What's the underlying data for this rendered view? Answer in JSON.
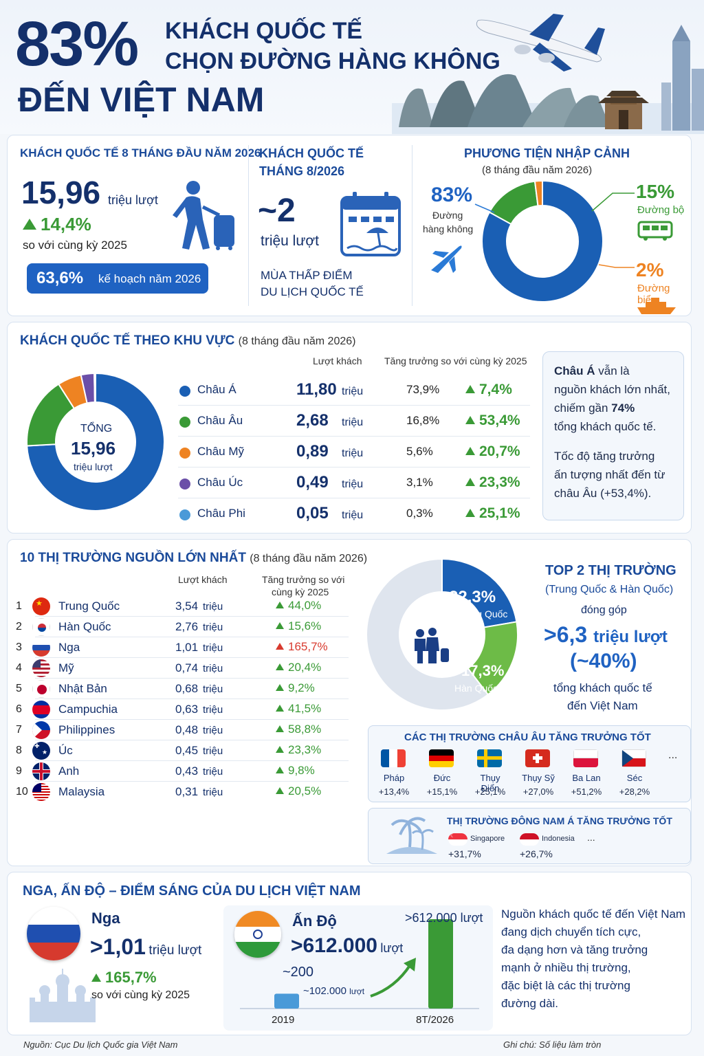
{
  "colors": {
    "navy": "#14306b",
    "blue": "#1a5fb4",
    "green": "#3a9a36",
    "orange": "#ee8322",
    "purple": "#6b4fa8",
    "lightblue": "#4a9ad8"
  },
  "header": {
    "big_percent": "83%",
    "title_line1": "KHÁCH QUỐC TẾ",
    "title_line2": "CHỌN ĐƯỜNG HÀNG KHÔNG",
    "title_line3": "ĐẾN VIỆT NAM"
  },
  "summary": {
    "card1_title": "KHÁCH QUỐC TẾ 8 THÁNG ĐẦU NĂM 2026",
    "total_value": "15,96",
    "total_unit": "triệu lượt",
    "growth": "14,4%",
    "growth_note": "so với cùng kỳ 2025",
    "plan_pct": "63,6%",
    "plan_text": "kế hoạch năm 2026",
    "card2_title_1": "KHÁCH QUỐC TẾ",
    "card2_title_2": "THÁNG 8/2026",
    "month_value": "~2",
    "month_unit": "triệu lượt",
    "month_note_1": "MÙA THẤP ĐIỂM",
    "month_note_2": "DU LỊCH QUỐC TẾ"
  },
  "transport": {
    "title": "PHƯƠNG TIỆN NHẬP CẢNH",
    "subtitle": "(8 tháng đầu năm 2026)",
    "air_pct": "83%",
    "air_label_1": "Đường",
    "air_label_2": "hàng không",
    "road_pct": "15%",
    "road_label": "Đường bộ",
    "sea_pct": "2%",
    "sea_label": "Đường biển"
  },
  "chart_data": [
    {
      "type": "pie",
      "categories": [
        "Đường hàng không",
        "Đường bộ",
        "Đường biển"
      ],
      "values": [
        83,
        15,
        2
      ]
    },
    {
      "type": "pie",
      "categories": [
        "Châu Á",
        "Châu Âu",
        "Châu Mỹ",
        "Châu Úc",
        "Châu Phi"
      ],
      "values": [
        73.9,
        16.8,
        5.6,
        3.1,
        0.3
      ]
    },
    {
      "type": "pie",
      "categories": [
        "Trung Quốc",
        "Hàn Quốc"
      ],
      "values": [
        22.3,
        17.3
      ]
    },
    {
      "type": "bar",
      "categories": [
        "2019",
        "8T/2026"
      ],
      "values": [
        102000,
        612000
      ]
    }
  ],
  "regions": {
    "title": "KHÁCH QUỐC TẾ THEO KHU VỰC",
    "subtitle": "(8 tháng đầu năm 2026)",
    "col_visitors": "Lượt khách",
    "col_growth": "Tăng trưởng so với cùng kỳ 2025",
    "center_label": "TỔNG",
    "center_value": "15,96",
    "center_unit": "triệu lượt",
    "rows": [
      {
        "name": "Châu Á",
        "value": "11,80",
        "unit": "triệu",
        "share": "73,9%",
        "growth": "7,4%"
      },
      {
        "name": "Châu Âu",
        "value": "2,68",
        "unit": "triệu",
        "share": "16,8%",
        "growth": "53,4%"
      },
      {
        "name": "Châu Mỹ",
        "value": "0,89",
        "unit": "triệu",
        "share": "5,6%",
        "growth": "20,7%"
      },
      {
        "name": "Châu Úc",
        "value": "0,49",
        "unit": "triệu",
        "share": "3,1%",
        "growth": "23,3%"
      },
      {
        "name": "Châu Phi",
        "value": "0,05",
        "unit": "triệu",
        "share": "0,3%",
        "growth": "25,1%"
      }
    ],
    "note_bold1": "Châu Á",
    "note_p1a": "vẫn là",
    "note_p1b": "nguồn khách lớn nhất,",
    "note_p1c": "chiếm gần",
    "note_p1c_bold": "74%",
    "note_p1d": "tổng khách quốc tế.",
    "note_p2a": "Tốc độ tăng trưởng",
    "note_p2b": "ấn tượng nhất đến từ",
    "note_p2c": "châu Âu (+53,4%)."
  },
  "markets": {
    "title": "10 THỊ TRƯỜNG NGUỒN LỚN NHẤT",
    "subtitle": "(8 tháng đầu năm 2026)",
    "col_visitors": "Lượt khách",
    "col_growth_1": "Tăng trưởng so với",
    "col_growth_2": "cùng kỳ 2025",
    "rows": [
      {
        "rank": "1",
        "name": "Trung Quốc",
        "value": "3,54",
        "unit": "triệu",
        "growth": "44,0%"
      },
      {
        "rank": "2",
        "name": "Hàn Quốc",
        "value": "2,76",
        "unit": "triệu",
        "growth": "15,6%"
      },
      {
        "rank": "3",
        "name": "Nga",
        "value": "1,01",
        "unit": "triệu",
        "growth": "165,7%"
      },
      {
        "rank": "4",
        "name": "Mỹ",
        "value": "0,74",
        "unit": "triệu",
        "growth": "20,4%"
      },
      {
        "rank": "5",
        "name": "Nhật Bản",
        "value": "0,68",
        "unit": "triệu",
        "growth": "9,2%"
      },
      {
        "rank": "6",
        "name": "Campuchia",
        "value": "0,63",
        "unit": "triệu",
        "growth": "41,5%"
      },
      {
        "rank": "7",
        "name": "Philippines",
        "value": "0,48",
        "unit": "triệu",
        "growth": "58,8%"
      },
      {
        "rank": "8",
        "name": "Úc",
        "value": "0,45",
        "unit": "triệu",
        "growth": "23,3%"
      },
      {
        "rank": "9",
        "name": "Anh",
        "value": "0,43",
        "unit": "triệu",
        "growth": "9,8%"
      },
      {
        "rank": "10",
        "name": "Malaysia",
        "value": "0,31",
        "unit": "triệu",
        "growth": "20,5%"
      }
    ],
    "cn_pct": "22,3%",
    "cn_label": "Trung Quốc",
    "kr_pct": "17,3%",
    "kr_label": "Hàn Quốc",
    "top2_title": "TOP 2 THỊ TRƯỜNG",
    "top2_sub": "(Trung Quốc & Hàn Quốc)",
    "top2_contrib": "đóng góp",
    "top2_value": ">6,3",
    "top2_unit": "triệu lượt",
    "top2_pct": "(~40%)",
    "top2_note_1": "tổng khách quốc tế",
    "top2_note_2": "đến Việt Nam"
  },
  "europe": {
    "title": "CÁC THỊ TRƯỜNG CHÂU ÂU TĂNG TRƯỞNG TỐT",
    "items": [
      {
        "name": "Pháp",
        "growth": "+13,4%"
      },
      {
        "name": "Đức",
        "growth": "+15,1%"
      },
      {
        "name": "Thụy Điển",
        "growth": "+25,1%"
      },
      {
        "name": "Thụy Sỹ",
        "growth": "+27,0%"
      },
      {
        "name": "Ba Lan",
        "growth": "+51,2%"
      },
      {
        "name": "Séc",
        "growth": "+28,2%"
      }
    ],
    "more": "..."
  },
  "sea": {
    "title": "THỊ TRƯỜNG ĐÔNG NAM Á TĂNG TRƯỞNG TỐT",
    "items": [
      {
        "name": "Singapore",
        "growth": "+31,7%"
      },
      {
        "name": "Indonesia",
        "growth": "+26,7%"
      }
    ],
    "more": "..."
  },
  "highlight": {
    "title": "NGA, ẤN ĐỘ – ĐIỂM SÁNG CỦA DU LỊCH VIỆT NAM",
    "russia_name": "Nga",
    "russia_value": ">1,01",
    "russia_unit": "triệu lượt",
    "russia_growth": "165,7%",
    "russia_note": "so với cùng kỳ 2025",
    "india_name": "Ấn Độ",
    "india_value": ">612.000",
    "india_unit": "lượt",
    "bar_label_2019_a": "~200",
    "bar_label_2019_b": "~102.000",
    "bar_label_2019_unit": "lượt",
    "bar_label_2026": ">612.000 lượt",
    "x_2019": "2019",
    "x_2026": "8T/2026",
    "summary_1": "Nguồn khách quốc tế đến Việt Nam",
    "summary_2": "đang dịch chuyển tích cực,",
    "summary_3": "đa dạng hơn và tăng trưởng",
    "summary_4": "mạnh ở nhiều thị trường,",
    "summary_5": "đặc biệt là các thị trường",
    "summary_6": "đường dài."
  },
  "footer": {
    "source": "Nguồn: Cục Du lịch Quốc gia Việt Nam",
    "note": "Ghi chú: Số liệu làm tròn"
  }
}
